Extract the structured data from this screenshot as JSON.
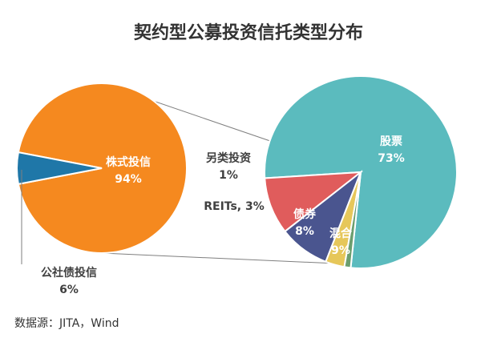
{
  "chart_data": {
    "type": "pie",
    "title": "契约型公募投资信托类型分布",
    "source": "数据源：JITA，Wind",
    "main_pie": {
      "slices": [
        {
          "name": "株式投信",
          "value_label": "94%",
          "value": 94,
          "color": "#F5891F"
        },
        {
          "name": "公社债投信",
          "value_label": "6%",
          "value": 6,
          "color": "#1F77A8"
        }
      ]
    },
    "detail_pie": {
      "parent": "株式投信",
      "slices": [
        {
          "name": "股票",
          "value_label": "73%",
          "value": 73,
          "color": "#5BBBBE"
        },
        {
          "name": "混合",
          "value_label": "9%",
          "value": 9,
          "color": "#E05C5C"
        },
        {
          "name": "债券",
          "value_label": "8%",
          "value": 8,
          "color": "#4A558F"
        },
        {
          "name": "REITs",
          "value_label": "3%",
          "value": 3,
          "color": "#E6C75A",
          "combined_label": "REITs, 3%"
        },
        {
          "name": "另类投资",
          "value_label": "1%",
          "value": 1,
          "color": "#6B9E6E"
        }
      ]
    }
  }
}
